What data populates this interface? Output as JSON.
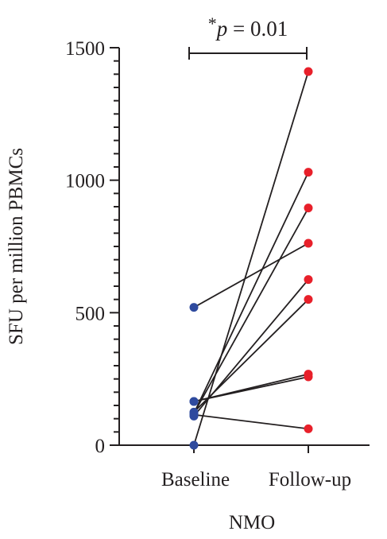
{
  "chart_data": {
    "type": "scatter",
    "subtype": "paired-line",
    "xlabel": "NMO",
    "ylabel": "SFU per million PBMCs",
    "categories": [
      "Baseline",
      "Follow-up"
    ],
    "ylim": [
      0,
      1500
    ],
    "yticks": [
      0,
      500,
      1000,
      1500
    ],
    "y_minor_step": 50,
    "grid": false,
    "annotation": {
      "star": "*",
      "p": "p",
      "rest": " = 0.01"
    },
    "colors": {
      "Baseline": "#2e4a9e",
      "Follow-up": "#e8202a",
      "line": "#231f20"
    },
    "pairs": [
      {
        "baseline": 0,
        "followup": 1410
      },
      {
        "baseline": 120,
        "followup": 1030
      },
      {
        "baseline": 120,
        "followup": 895
      },
      {
        "baseline": 520,
        "followup": 762
      },
      {
        "baseline": 110,
        "followup": 625
      },
      {
        "baseline": 125,
        "followup": 550
      },
      {
        "baseline": 165,
        "followup": 268
      },
      {
        "baseline": 165,
        "followup": 258
      },
      {
        "baseline": 115,
        "followup": 62
      }
    ]
  }
}
